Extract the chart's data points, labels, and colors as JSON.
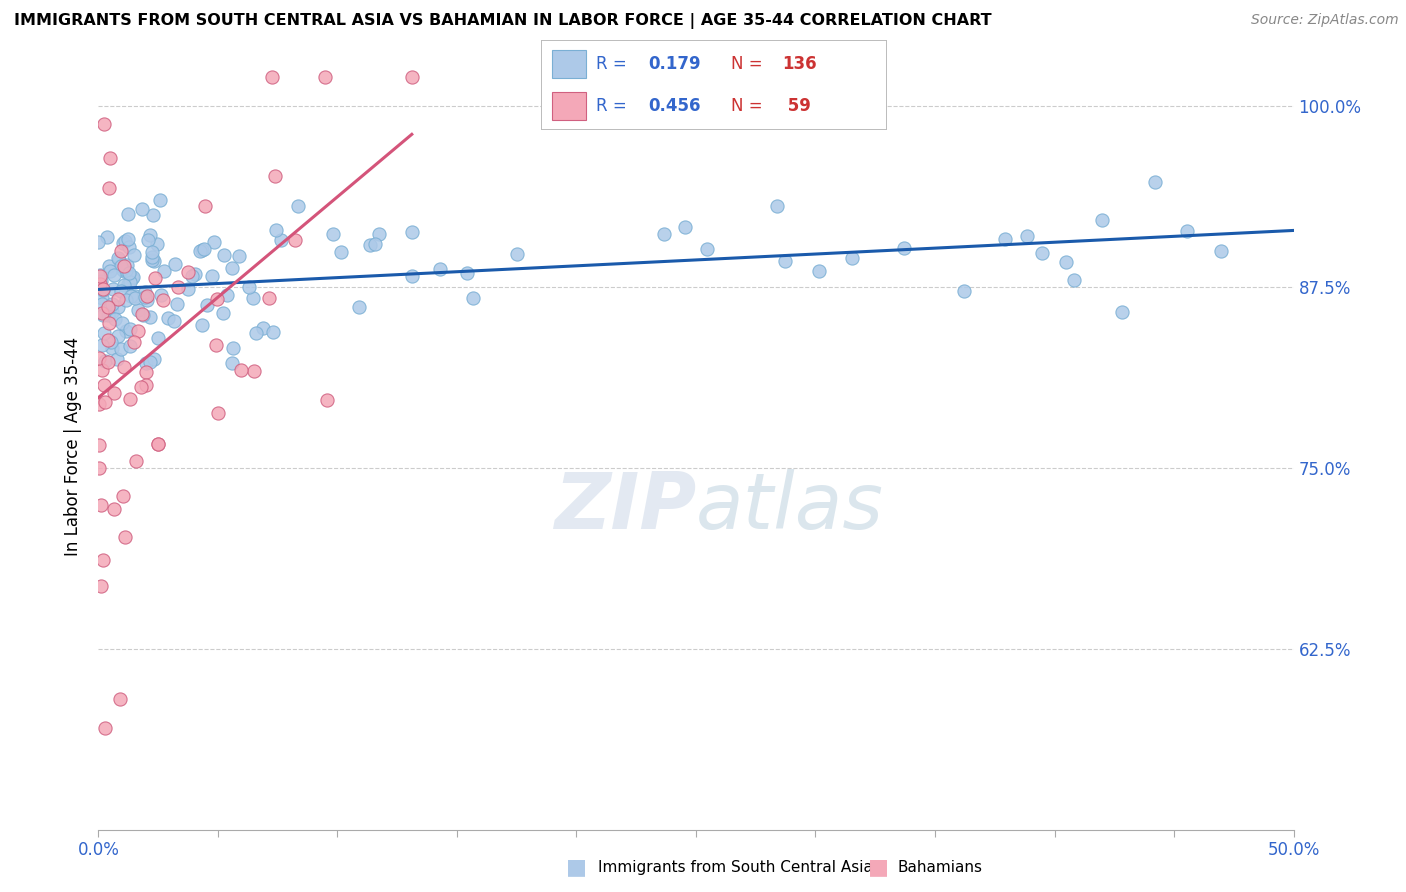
{
  "title": "IMMIGRANTS FROM SOUTH CENTRAL ASIA VS BAHAMIAN IN LABOR FORCE | AGE 35-44 CORRELATION CHART",
  "source": "Source: ZipAtlas.com",
  "ylabel": "In Labor Force | Age 35-44",
  "ytick_labels": [
    "62.5%",
    "75.0%",
    "87.5%",
    "100.0%"
  ],
  "ytick_values": [
    0.625,
    0.75,
    0.875,
    1.0
  ],
  "xlim": [
    0.0,
    0.5
  ],
  "ylim": [
    0.5,
    1.03
  ],
  "blue_color": "#adc9e8",
  "blue_edge": "#7aafd4",
  "pink_color": "#f4a8b8",
  "pink_edge": "#d06080",
  "trend_blue": "#1a5aab",
  "trend_pink": "#d4547a",
  "legend_blue_label": "Immigrants from South Central Asia",
  "legend_pink_label": "Bahamians",
  "R_blue": 0.179,
  "N_blue": 136,
  "R_pink": 0.456,
  "N_pink": 59,
  "watermark_zip": "ZIP",
  "watermark_atlas": "atlas",
  "background_color": "#ffffff",
  "grid_color": "#cccccc",
  "axis_label_color": "#3366cc",
  "title_color": "#000000",
  "legend_r_color": "#3366cc",
  "legend_n_color": "#cc3333"
}
